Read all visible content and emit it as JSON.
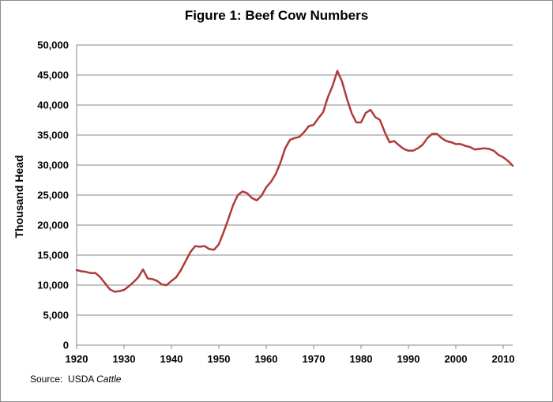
{
  "chart_data": {
    "type": "line",
    "title": "Figure 1: Beef Cow Numbers",
    "xlabel": "",
    "ylabel": "Thousand Head",
    "xlim": [
      1920,
      2012
    ],
    "ylim": [
      0,
      50000
    ],
    "x_ticks": [
      "1920",
      "1930",
      "1940",
      "1950",
      "1960",
      "1970",
      "1980",
      "1990",
      "2000",
      "2010"
    ],
    "y_ticks": [
      "0",
      "5,000",
      "10,000",
      "15,000",
      "20,000",
      "25,000",
      "30,000",
      "35,000",
      "40,000",
      "45,000",
      "50,000"
    ],
    "grid": true,
    "legend": "none",
    "line_color": "#b03a3a",
    "series": [
      {
        "x": [
          1920,
          1921,
          1922,
          1923,
          1924,
          1925,
          1926,
          1927,
          1928,
          1929,
          1930,
          1931,
          1932,
          1933,
          1934,
          1935,
          1936,
          1937,
          1938,
          1939,
          1940,
          1941,
          1942,
          1943,
          1944,
          1945,
          1946,
          1947,
          1948,
          1949,
          1950,
          1951,
          1952,
          1953,
          1954,
          1955,
          1956,
          1957,
          1958,
          1959,
          1960,
          1961,
          1962,
          1963,
          1964,
          1965,
          1966,
          1967,
          1968,
          1969,
          1970,
          1971,
          1972,
          1973,
          1974,
          1975,
          1976,
          1977,
          1978,
          1979,
          1980,
          1981,
          1982,
          1983,
          1984,
          1985,
          1986,
          1987,
          1988,
          1989,
          1990,
          1991,
          1992,
          1993,
          1994,
          1995,
          1996,
          1997,
          1998,
          1999,
          2000,
          2001,
          2002,
          2003,
          2004,
          2005,
          2006,
          2007,
          2008,
          2009,
          2010,
          2011,
          2012
        ],
        "values": [
          12500,
          12300,
          12200,
          12000,
          12000,
          11300,
          10300,
          9300,
          8900,
          9000,
          9200,
          9800,
          10500,
          11300,
          12600,
          11100,
          11000,
          10700,
          10100,
          10000,
          10700,
          11300,
          12500,
          14000,
          15500,
          16500,
          16400,
          16500,
          16000,
          15900,
          16800,
          18800,
          21000,
          23300,
          25000,
          25600,
          25300,
          24500,
          24100,
          24900,
          26300,
          27200,
          28500,
          30400,
          32800,
          34200,
          34500,
          34700,
          35500,
          36500,
          36700,
          37800,
          38800,
          41300,
          43200,
          45700,
          43900,
          41100,
          38700,
          37100,
          37100,
          38700,
          39200,
          38000,
          37500,
          35500,
          33800,
          34000,
          33300,
          32700,
          32400,
          32400,
          32800,
          33400,
          34500,
          35200,
          35200,
          34500,
          34000,
          33800,
          33500,
          33500,
          33200,
          33000,
          32600,
          32700,
          32800,
          32700,
          32400,
          31700,
          31300,
          30700,
          29900
        ]
      }
    ],
    "source_label": "Source:",
    "source_text": "USDA",
    "source_italic": "Cattle"
  }
}
